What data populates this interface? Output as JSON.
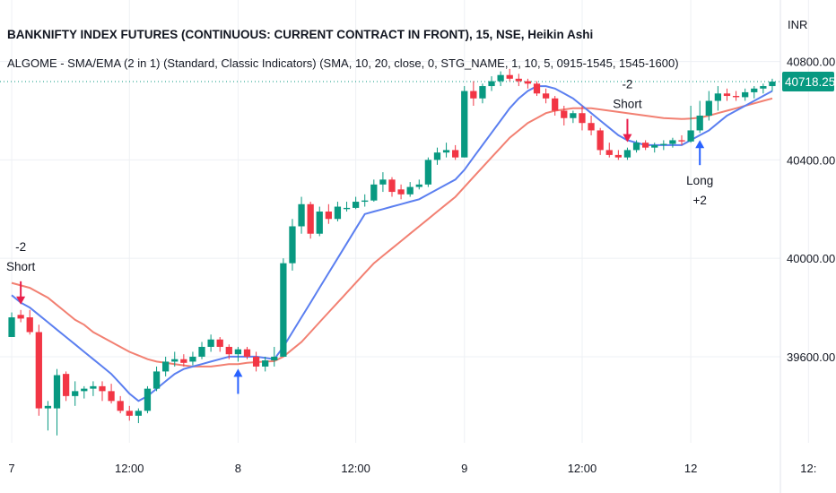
{
  "header": {
    "title": "BANKNIFTY INDEX FUTURES (CONTINUOUS: CURRENT CONTRACT IN FRONT), 15, NSE, Heikin Ashi",
    "indicator": "ALGOME - SMA/EMA (2 in 1)  (Standard, Classic Indicators) (SMA, 10, 20, close, 0, STG_NAME, 1, 10, 5, 0915-1545, 1545-1600)"
  },
  "currency_label": "INR",
  "last_price": {
    "value": 40718.25,
    "label": "40718.25"
  },
  "colors": {
    "up": "#089981",
    "down": "#f23645",
    "sma": "#5b7ff0",
    "ema": "#f28072",
    "short_arrow": "#e91e4b",
    "long_arrow": "#2962ff",
    "grid": "#eef0f4"
  },
  "chart_data": {
    "type": "candlestick",
    "style": "Heikin Ashi",
    "ylim": [
      39250,
      41050
    ],
    "y_ticks": [
      39600,
      40000,
      40400,
      40800
    ],
    "y_tick_labels": [
      "39600.00",
      "40000.00",
      "40400.00",
      "40800.00"
    ],
    "x_ticks": [
      "7",
      "12:00",
      "8",
      "12:00",
      "9",
      "12:00",
      "12",
      "12:"
    ],
    "x_tick_bars": [
      0,
      13,
      25,
      38,
      50,
      63,
      75,
      88
    ],
    "candles": [
      [
        39680,
        39780,
        39680,
        39760
      ],
      [
        39770,
        39790,
        39740,
        39755
      ],
      [
        39760,
        39790,
        39690,
        39700
      ],
      [
        39700,
        39730,
        39360,
        39390
      ],
      [
        39390,
        39420,
        39300,
        39400
      ],
      [
        39390,
        39550,
        39280,
        39525
      ],
      [
        39530,
        39540,
        39420,
        39440
      ],
      [
        39440,
        39500,
        39400,
        39460
      ],
      [
        39460,
        39480,
        39430,
        39470
      ],
      [
        39470,
        39500,
        39440,
        39480
      ],
      [
        39480,
        39500,
        39420,
        39460
      ],
      [
        39460,
        39490,
        39410,
        39420
      ],
      [
        39420,
        39440,
        39370,
        39380
      ],
      [
        39380,
        39400,
        39340,
        39360
      ],
      [
        39360,
        39390,
        39330,
        39380
      ],
      [
        39380,
        39480,
        39370,
        39470
      ],
      [
        39470,
        39560,
        39460,
        39540
      ],
      [
        39540,
        39600,
        39520,
        39580
      ],
      [
        39580,
        39620,
        39560,
        39590
      ],
      [
        39590,
        39610,
        39560,
        39575
      ],
      [
        39580,
        39620,
        39565,
        39600
      ],
      [
        39600,
        39660,
        39590,
        39640
      ],
      [
        39640,
        39690,
        39620,
        39670
      ],
      [
        39670,
        39680,
        39620,
        39640
      ],
      [
        39640,
        39650,
        39590,
        39610
      ],
      [
        39610,
        39640,
        39580,
        39630
      ],
      [
        39630,
        39640,
        39590,
        39600
      ],
      [
        39600,
        39620,
        39540,
        39560
      ],
      [
        39560,
        39600,
        39540,
        39585
      ],
      [
        39585,
        39640,
        39560,
        39600
      ],
      [
        39600,
        40000,
        39600,
        39980
      ],
      [
        39980,
        40160,
        39950,
        40130
      ],
      [
        40130,
        40250,
        40100,
        40220
      ],
      [
        40220,
        40230,
        40080,
        40100
      ],
      [
        40100,
        40210,
        40090,
        40190
      ],
      [
        40190,
        40220,
        40140,
        40160
      ],
      [
        40160,
        40230,
        40150,
        40210
      ],
      [
        40200,
        40230,
        40190,
        40205
      ],
      [
        40205,
        40250,
        40200,
        40230
      ],
      [
        40230,
        40260,
        40210,
        40235
      ],
      [
        40235,
        40320,
        40230,
        40300
      ],
      [
        40300,
        40350,
        40270,
        40320
      ],
      [
        40320,
        40330,
        40250,
        40270
      ],
      [
        40280,
        40300,
        40240,
        40260
      ],
      [
        40260,
        40310,
        40250,
        40290
      ],
      [
        40290,
        40320,
        40280,
        40300
      ],
      [
        40300,
        40410,
        40290,
        40400
      ],
      [
        40400,
        40450,
        40380,
        40430
      ],
      [
        40430,
        40470,
        40410,
        40440
      ],
      [
        40440,
        40460,
        40400,
        40410
      ],
      [
        40410,
        40700,
        40410,
        40680
      ],
      [
        40680,
        40720,
        40620,
        40650
      ],
      [
        40650,
        40710,
        40630,
        40700
      ],
      [
        40700,
        40740,
        40680,
        40720
      ],
      [
        40720,
        40760,
        40700,
        40745
      ],
      [
        40745,
        40770,
        40720,
        40730
      ],
      [
        40730,
        40750,
        40700,
        40720
      ],
      [
        40720,
        40730,
        40690,
        40710
      ],
      [
        40710,
        40720,
        40660,
        40670
      ],
      [
        40670,
        40690,
        40630,
        40650
      ],
      [
        40650,
        40660,
        40580,
        40600
      ],
      [
        40600,
        40620,
        40540,
        40570
      ],
      [
        40570,
        40600,
        40550,
        40590
      ],
      [
        40590,
        40620,
        40520,
        40550
      ],
      [
        40550,
        40580,
        40500,
        40520
      ],
      [
        40520,
        40530,
        40420,
        40440
      ],
      [
        40440,
        40470,
        40410,
        40420
      ],
      [
        40420,
        40440,
        40400,
        40410
      ],
      [
        40410,
        40450,
        40400,
        40440
      ],
      [
        40440,
        40480,
        40430,
        40470
      ],
      [
        40470,
        40480,
        40440,
        40450
      ],
      [
        40450,
        40470,
        40430,
        40460
      ],
      [
        40460,
        40480,
        40440,
        40465
      ],
      [
        40465,
        40490,
        40450,
        40480
      ],
      [
        40480,
        40500,
        40460,
        40475
      ],
      [
        40475,
        40620,
        40470,
        40520
      ],
      [
        40520,
        40640,
        40510,
        40580
      ],
      [
        40580,
        40680,
        40560,
        40640
      ],
      [
        40640,
        40700,
        40600,
        40670
      ],
      [
        40670,
        40690,
        40640,
        40660
      ],
      [
        40660,
        40680,
        40640,
        40655
      ],
      [
        40655,
        40690,
        40640,
        40675
      ],
      [
        40675,
        40700,
        40650,
        40690
      ],
      [
        40690,
        40710,
        40670,
        40700
      ],
      [
        40700,
        40730,
        40680,
        40718.25
      ]
    ],
    "series": [
      {
        "name": "SMA 10",
        "values": [
          39850,
          39820,
          39800,
          39770,
          39740,
          39710,
          39680,
          39650,
          39620,
          39590,
          39560,
          39530,
          39490,
          39450,
          39420,
          39440,
          39470,
          39500,
          39530,
          39550,
          39560,
          39570,
          39580,
          39590,
          39600,
          39600,
          39600,
          39600,
          39595,
          39590,
          39640,
          39700,
          39760,
          39820,
          39880,
          39940,
          40000,
          40060,
          40120,
          40180,
          40190,
          40200,
          40210,
          40220,
          40230,
          40240,
          40260,
          40280,
          40300,
          40320,
          40360,
          40410,
          40460,
          40510,
          40560,
          40610,
          40650,
          40680,
          40700,
          40700,
          40690,
          40670,
          40650,
          40620,
          40590,
          40560,
          40530,
          40500,
          40480,
          40470,
          40460,
          40460,
          40460,
          40460,
          40460,
          40480,
          40500,
          40520,
          40550,
          40580,
          40600,
          40620,
          40640,
          40660,
          40680
        ]
      },
      {
        "name": "EMA 20",
        "values": [
          39900,
          39890,
          39880,
          39860,
          39840,
          39810,
          39780,
          39750,
          39730,
          39700,
          39680,
          39660,
          39640,
          39620,
          39605,
          39590,
          39580,
          39575,
          39570,
          39565,
          39560,
          39560,
          39560,
          39565,
          39570,
          39570,
          39575,
          39578,
          39580,
          39582,
          39600,
          39630,
          39660,
          39700,
          39740,
          39780,
          39820,
          39860,
          39900,
          39940,
          39980,
          40010,
          40040,
          40070,
          40100,
          40130,
          40160,
          40190,
          40220,
          40250,
          40290,
          40330,
          40370,
          40410,
          40450,
          40490,
          40520,
          40550,
          40570,
          40590,
          40600,
          40605,
          40610,
          40610,
          40610,
          40605,
          40600,
          40595,
          40590,
          40585,
          40580,
          40575,
          40570,
          40568,
          40566,
          40568,
          40572,
          40580,
          40590,
          40600,
          40610,
          40620,
          40630,
          40640,
          40650
        ]
      }
    ],
    "signals": [
      {
        "bar": 1,
        "type": "short",
        "value_label": "-2",
        "side_label": "Short"
      },
      {
        "bar": 25,
        "type": "long",
        "value_label": "",
        "side_label": ""
      },
      {
        "bar": 68,
        "type": "short",
        "value_label": "-2",
        "side_label": "Short"
      },
      {
        "bar": 76,
        "type": "long",
        "value_label": "+2",
        "side_label": "Long"
      }
    ]
  }
}
